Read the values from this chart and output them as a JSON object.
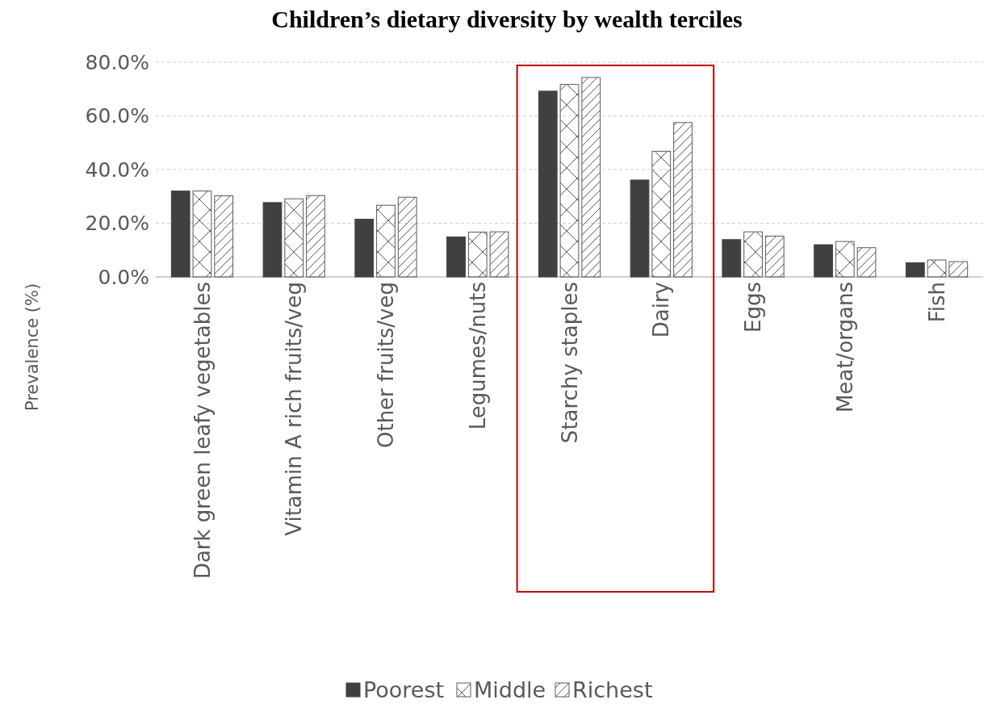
{
  "chart_data": {
    "type": "bar",
    "title": "Children’s dietary diversity by wealth terciles",
    "ylabel": "Prevalence (%)",
    "categories": [
      "Dark green leafy vegetables",
      "Vitamin A rich fruits/veg",
      "Other fruits/veg",
      "Legumes/nuts",
      "Starchy staples",
      "Dairy",
      "Eggs",
      "Meat/organs",
      "Fish"
    ],
    "series": [
      {
        "name": "Poorest",
        "color": "#404040",
        "values": [
          32.0,
          27.7,
          21.5,
          14.9,
          69.2,
          36.1,
          13.9,
          12.0,
          5.3
        ]
      },
      {
        "name": "Middle",
        "color": "#595959",
        "values": [
          32.0,
          29.1,
          26.7,
          16.7,
          71.7,
          46.8,
          16.8,
          13.2,
          6.3
        ]
      },
      {
        "name": "Richest",
        "color": "#595959",
        "values": [
          30.2,
          30.3,
          29.7,
          16.8,
          74.3,
          57.5,
          15.2,
          10.9,
          5.7
        ]
      }
    ],
    "ylim": [
      0,
      80
    ],
    "yticks": [
      {
        "value": 0,
        "label": "0.0%"
      },
      {
        "value": 20,
        "label": "20.0%"
      },
      {
        "value": 40,
        "label": "40.0%"
      },
      {
        "value": 60,
        "label": "60.0%"
      },
      {
        "value": 80,
        "label": "80.0%"
      }
    ],
    "grid": "y",
    "legend": "bottom"
  }
}
